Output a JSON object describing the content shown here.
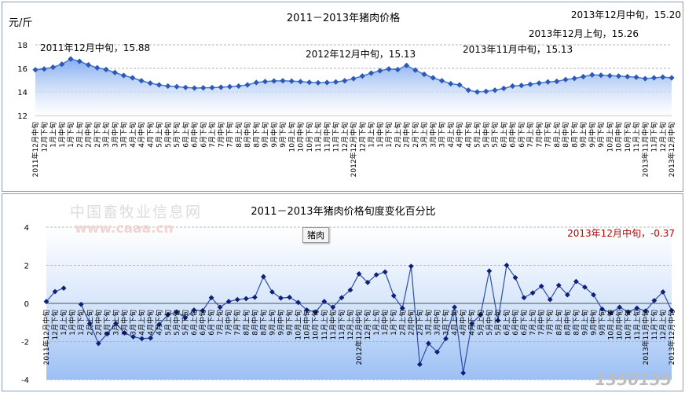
{
  "watermark": {
    "cn": "中国畜牧业信息网",
    "url": "www.caaa.cn",
    "brand": "1350135"
  },
  "chart_data": [
    {
      "type": "line",
      "title": "2011－2013年猪肉价格",
      "ylabel": "元/斤",
      "ylim": [
        12,
        18
      ],
      "yticks": [
        12,
        14,
        16,
        18
      ],
      "grid": true,
      "line_color": "#4a78c8",
      "marker_color": "#2b59b8",
      "fill_color": "#7fa9ef",
      "x": [
        "2011年12月中旬",
        "12月下旬",
        "1月上旬",
        "1月中旬",
        "1月下旬",
        "2月上旬",
        "2月中旬",
        "2月下旬",
        "3月上旬",
        "3月中旬",
        "3月下旬",
        "4月上旬",
        "4月中旬",
        "4月下旬",
        "5月上旬",
        "5月中旬",
        "5月下旬",
        "6月上旬",
        "6月中旬",
        "6月下旬",
        "7月上旬",
        "7月中旬",
        "7月下旬",
        "8月上旬",
        "8月中旬",
        "8月下旬",
        "9月上旬",
        "9月中旬",
        "9月下旬",
        "10月上旬",
        "10月中旬",
        "10月下旬",
        "11月上旬",
        "11月中旬",
        "11月下旬",
        "12月上旬",
        "2012年12月中旬",
        "12月下旬",
        "1月上旬",
        "1月中旬",
        "1月下旬",
        "2月上旬",
        "2月中旬",
        "2月下旬",
        "3月上旬",
        "3月中旬",
        "3月下旬",
        "4月上旬",
        "4月中旬",
        "4月下旬",
        "5月上旬",
        "5月中旬",
        "5月下旬",
        "6月上旬",
        "6月中旬",
        "6月下旬",
        "7月上旬",
        "7月中旬",
        "7月下旬",
        "8月上旬",
        "8月中旬",
        "8月下旬",
        "9月上旬",
        "9月中旬",
        "9月下旬",
        "10月上旬",
        "10月中旬",
        "10月下旬",
        "11月上旬",
        "2013年11月中旬",
        "11月下旬",
        "12月上旬",
        "2013年12月中旬"
      ],
      "values": [
        15.88,
        15.95,
        16.1,
        16.35,
        16.8,
        16.6,
        16.3,
        16.05,
        15.9,
        15.65,
        15.4,
        15.2,
        14.95,
        14.75,
        14.6,
        14.5,
        14.45,
        14.38,
        14.33,
        14.35,
        14.37,
        14.4,
        14.45,
        14.5,
        14.6,
        14.8,
        14.88,
        14.93,
        14.95,
        14.92,
        14.88,
        14.82,
        14.78,
        14.8,
        14.85,
        14.95,
        15.13,
        15.35,
        15.6,
        15.8,
        15.95,
        15.9,
        16.25,
        15.85,
        15.5,
        15.2,
        14.95,
        14.7,
        14.6,
        14.15,
        14.0,
        14.05,
        14.15,
        14.3,
        14.5,
        14.55,
        14.65,
        14.75,
        14.85,
        14.9,
        15.05,
        15.15,
        15.3,
        15.45,
        15.42,
        15.38,
        15.35,
        15.3,
        15.25,
        15.13,
        15.2,
        15.26,
        15.2
      ],
      "annotations": [
        {
          "point": 0,
          "text": "2011年12月中旬，15.88"
        },
        {
          "point": 36,
          "text": "2012年12月中旬，15.13"
        },
        {
          "point": 69,
          "text": "2013年11月中旬，15.13"
        },
        {
          "point": 71,
          "text": "2013年12月上旬，15.26"
        },
        {
          "point": 72,
          "text": "2013年12月中旬，15.20"
        }
      ]
    },
    {
      "type": "line",
      "title": "2011－2013年猪肉价格旬度变化百分比",
      "ylim": [
        -4,
        4
      ],
      "yticks": [
        -4,
        -2,
        0,
        2,
        4
      ],
      "grid": true,
      "legend": [
        "猪肉"
      ],
      "legend_position": "top-center",
      "line_color": "#2c4fa8",
      "marker_color": "#0f1f7a",
      "band_color": "#9cc0f4",
      "values": [
        0.1,
        0.62,
        0.8,
        null,
        -0.05,
        -1.05,
        -2.1,
        -1.6,
        -1.05,
        -1.55,
        -1.75,
        -1.85,
        -1.82,
        -1.1,
        -0.6,
        -0.45,
        -0.75,
        -0.35,
        -0.38,
        0.3,
        -0.2,
        0.1,
        0.2,
        0.25,
        0.32,
        1.4,
        0.6,
        0.28,
        0.32,
        0.05,
        -0.35,
        -0.45,
        0.1,
        -0.2,
        0.3,
        0.7,
        1.55,
        1.1,
        1.5,
        1.65,
        0.4,
        -0.25,
        1.95,
        -3.2,
        -2.1,
        -2.55,
        -1.85,
        -0.2,
        -3.65,
        -1.05,
        -0.6,
        1.7,
        -0.9,
        2.0,
        1.35,
        0.3,
        0.55,
        0.9,
        0.2,
        0.95,
        0.45,
        1.15,
        0.85,
        0.45,
        -0.3,
        -0.5,
        -0.2,
        -0.45,
        -0.25,
        -0.4,
        0.15,
        0.6,
        -0.37
      ],
      "annotations": [
        {
          "point": 72,
          "text": "2013年12月中旬，-0.37",
          "color": "#c00000"
        }
      ]
    }
  ]
}
